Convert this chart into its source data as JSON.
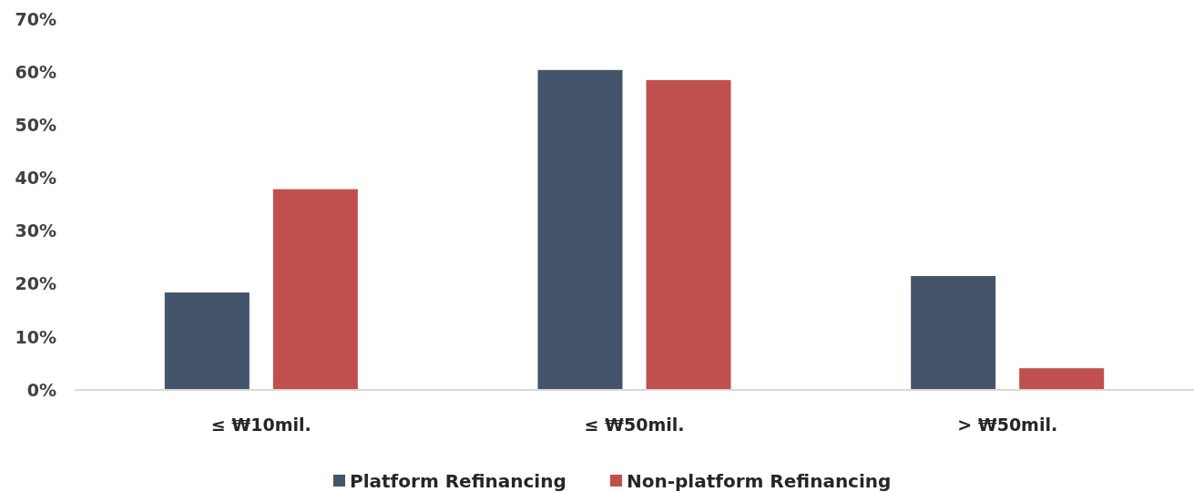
{
  "chart_data": {
    "type": "bar",
    "categories": [
      "≤ ₩10mil.",
      "≤ ₩50mil.",
      "> ₩50mil."
    ],
    "series": [
      {
        "name": "Platform Refinancing",
        "color": "#44546a",
        "values": [
          18.4,
          60.4,
          21.5
        ]
      },
      {
        "name": "Non-platform Refinancing",
        "color": "#c0504d",
        "values": [
          37.9,
          58.5,
          4.1
        ]
      }
    ],
    "ylim": [
      0,
      70
    ],
    "yticks": [
      {
        "value": 0,
        "label": "0%"
      },
      {
        "value": 10,
        "label": "10%"
      },
      {
        "value": 20,
        "label": "20%"
      },
      {
        "value": 30,
        "label": "30%"
      },
      {
        "value": 40,
        "label": "40%"
      },
      {
        "value": 50,
        "label": "50%"
      },
      {
        "value": 60,
        "label": "60%"
      },
      {
        "value": 70,
        "label": "70%"
      }
    ],
    "grid": false,
    "legend": "bottom"
  }
}
